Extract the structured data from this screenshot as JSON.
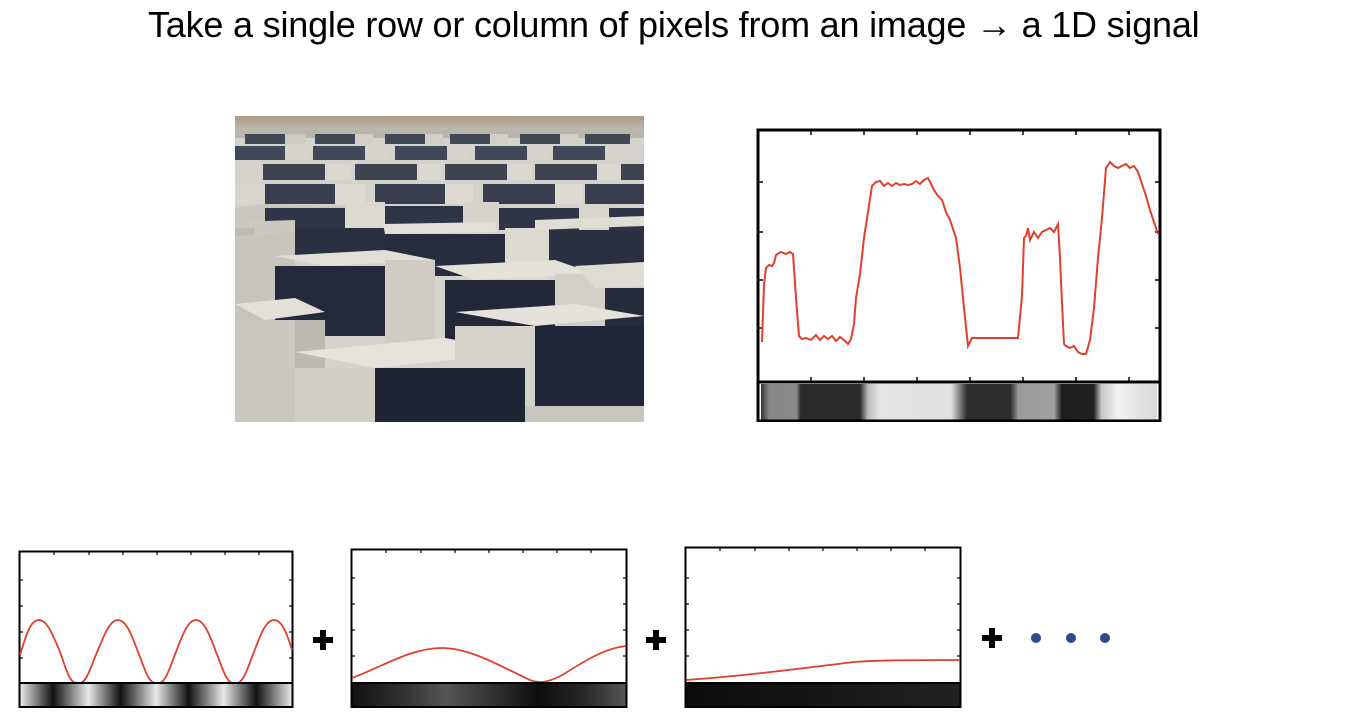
{
  "title": "Take a single row or column of pixels from an image → a 1D signal",
  "colors": {
    "signal": "#e0402e",
    "axes": "#000000",
    "dots": "#2f4a8a"
  },
  "icons": [
    "plus-icon",
    "ellipsis-dots-icon"
  ]
}
